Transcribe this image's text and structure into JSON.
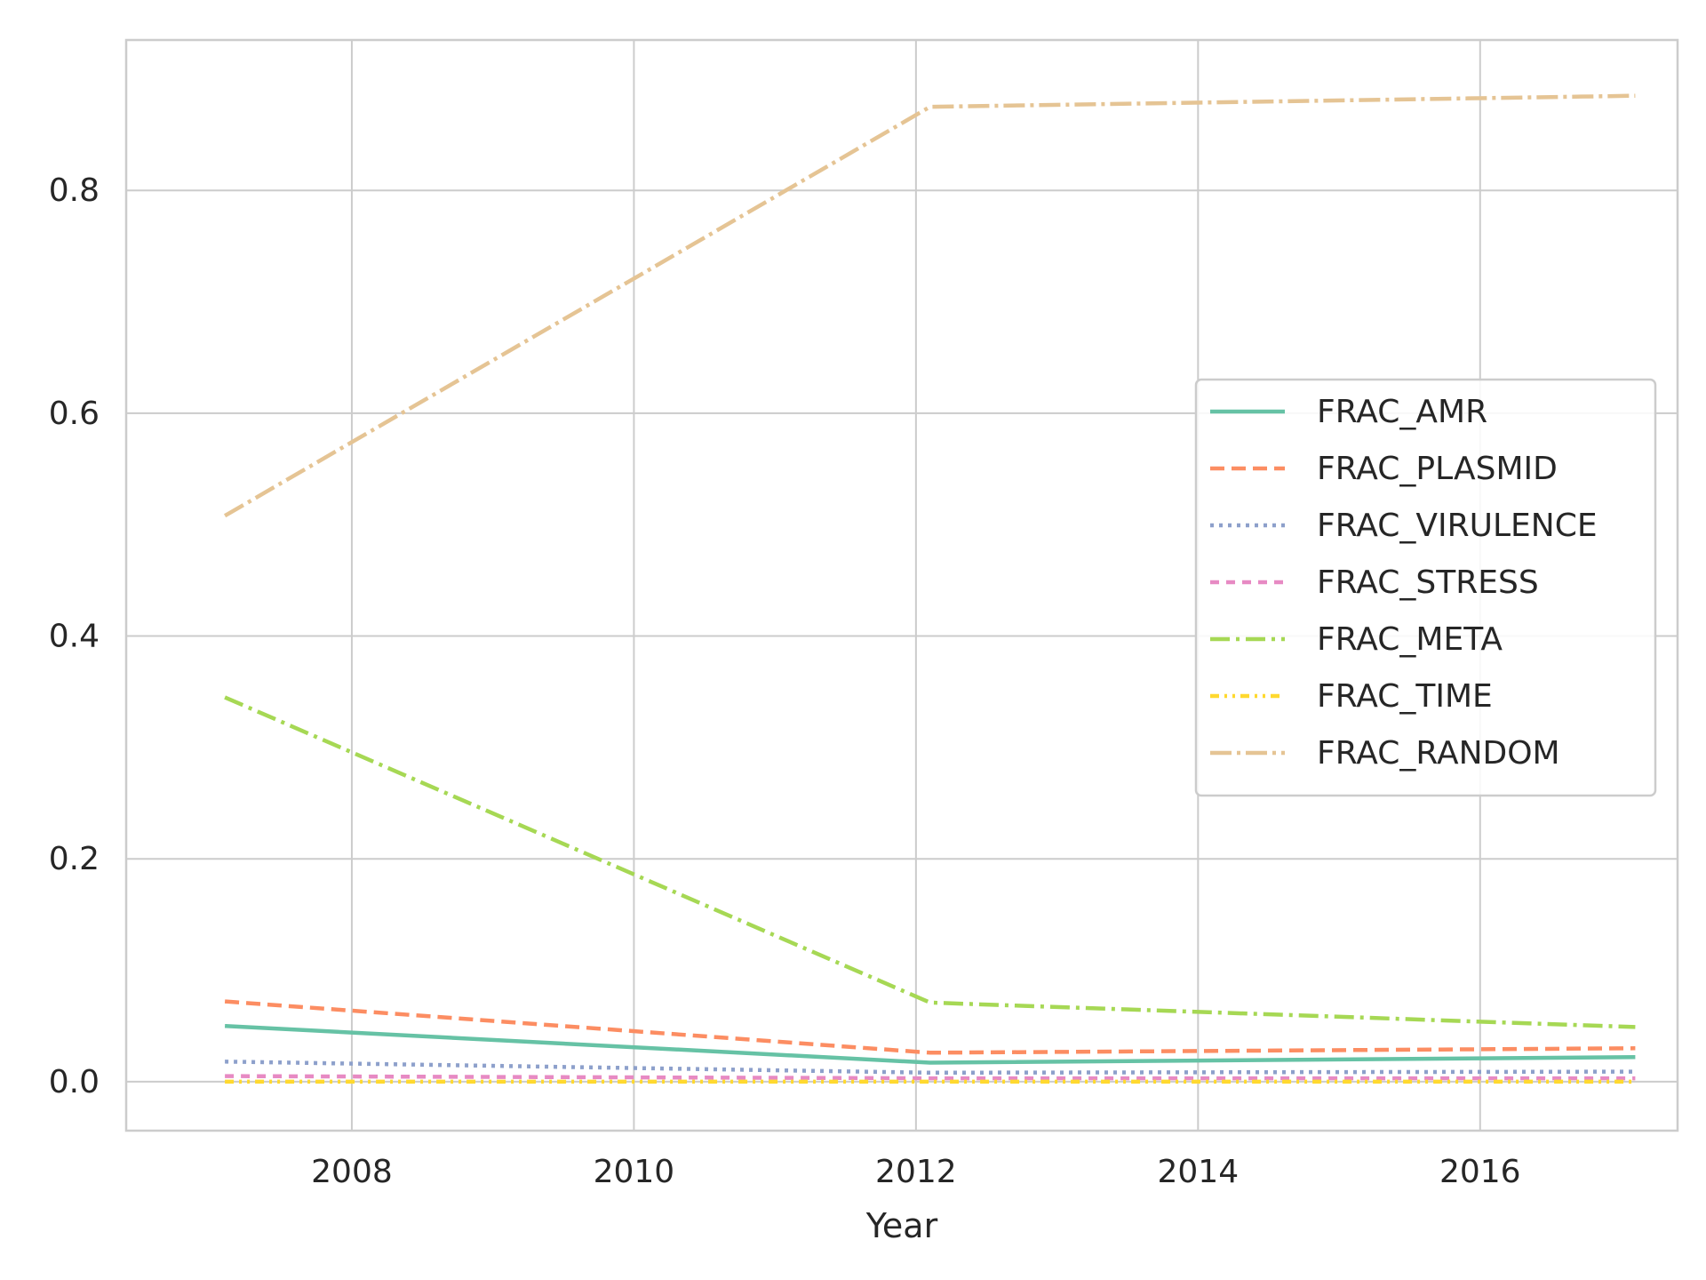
{
  "chart_data": {
    "type": "line",
    "xlabel": "Year",
    "ylabel": "",
    "xlim": [
      2006.4,
      2017.4
    ],
    "ylim": [
      -0.044,
      0.935
    ],
    "xticks": [
      2008,
      2010,
      2012,
      2014,
      2016
    ],
    "yticks": [
      0.0,
      0.2,
      0.4,
      0.6,
      0.8
    ],
    "grid": true,
    "legend_position": "center-right",
    "x": [
      2007.1,
      2012.1,
      2017.1
    ],
    "series": [
      {
        "name": "FRAC_AMR",
        "values": [
          0.05,
          0.017,
          0.022
        ],
        "color": "#66c2a5",
        "dash": "solid"
      },
      {
        "name": "FRAC_PLASMID",
        "values": [
          0.072,
          0.026,
          0.03
        ],
        "color": "#fc8d62",
        "dash": "dashed"
      },
      {
        "name": "FRAC_VIRULENCE",
        "values": [
          0.018,
          0.008,
          0.009
        ],
        "color": "#8da0cb",
        "dash": "dotted"
      },
      {
        "name": "FRAC_STRESS",
        "values": [
          0.005,
          0.003,
          0.003
        ],
        "color": "#e78ac3",
        "dash": "dashed-short"
      },
      {
        "name": "FRAC_META",
        "values": [
          0.345,
          0.071,
          0.049
        ],
        "color": "#a6d854",
        "dash": "dashdot"
      },
      {
        "name": "FRAC_TIME",
        "values": [
          0.0,
          0.0,
          0.0
        ],
        "color": "#ffd92f",
        "dash": "dashdotdot"
      },
      {
        "name": "FRAC_RANDOM",
        "values": [
          0.508,
          0.875,
          0.885
        ],
        "color": "#e5c494",
        "dash": "dashdot-long"
      }
    ]
  }
}
